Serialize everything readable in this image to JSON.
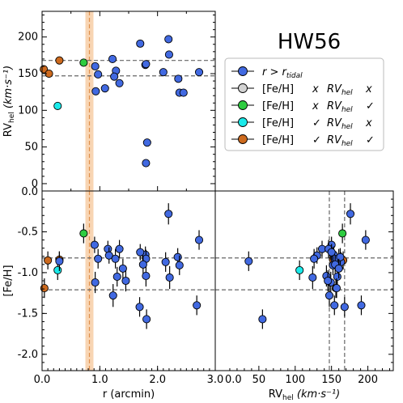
{
  "chart_data": {
    "type": "scatter",
    "title": "HW56",
    "colors": {
      "members": "#4169e1",
      "neither": "#d3d3d3",
      "rv_only": "#2ecc40",
      "feh_only": "#1aeaea",
      "both": "#cd6a1e",
      "tidal_band": "#f6c79a",
      "tidal_line": "#e0904c",
      "ref_line": "#666666"
    },
    "legend": {
      "placement": "right",
      "entries": [
        {
          "key": "members",
          "label": "r > r",
          "sub": "tidal",
          "c1": "",
          "c2": ""
        },
        {
          "key": "neither",
          "label": "[Fe/H]",
          "sub": "",
          "c1": "x",
          "c2": "x"
        },
        {
          "key": "rv_only",
          "label": "[Fe/H]",
          "sub": "",
          "c1": "x",
          "c2": "✓"
        },
        {
          "key": "feh_only",
          "label": "[Fe/H]",
          "sub": "",
          "c1": "✓",
          "c2": "x"
        },
        {
          "key": "both",
          "label": "[Fe/H]",
          "sub": "",
          "c1": "✓",
          "c2": "✓"
        }
      ],
      "rv_word": "RV",
      "rv_sub": "hel"
    },
    "axes": {
      "r_label": "r (arcmin)",
      "rv_label": "RV",
      "rv_sub": "hel",
      "rv_unit": "(km·s⁻¹)",
      "rv_unit_bottom": "(km·s⁻¹)",
      "feh_label": "[Fe/H]",
      "r_range": [
        0.0,
        3.0
      ],
      "rv_range": [
        -10,
        235
      ],
      "rv_range_bottom": [
        -10,
        235
      ],
      "feh_range": [
        -2.2,
        0.0
      ],
      "r_ticks": [
        "0.0",
        "1.0",
        "2.0",
        "3.0"
      ],
      "rv_ticks": [
        "0",
        "50",
        "100",
        "150",
        "200"
      ],
      "rv_ticks_bottom": [
        "50",
        "100",
        "150",
        "200"
      ],
      "feh_ticks": [
        "-0.5",
        "-1.0",
        "-1.5",
        "-2.0"
      ],
      "feh_top_tick": "0.0",
      "extra_tick": "0.0",
      "grid": false
    },
    "tidal_radius": {
      "r": 0.82,
      "band": [
        0.75,
        0.89
      ]
    },
    "rv_lines": [
      147,
      168
    ],
    "feh_lines": [
      -0.82,
      -1.21
    ],
    "rv_points": [
      {
        "r": 0.03,
        "rv": 156,
        "g": "both"
      },
      {
        "r": 0.12,
        "rv": 150,
        "g": "both"
      },
      {
        "r": 0.3,
        "rv": 168,
        "g": "both"
      },
      {
        "r": 0.27,
        "rv": 106,
        "g": "feh_only"
      },
      {
        "r": 0.72,
        "rv": 165,
        "g": "rv_only"
      },
      {
        "r": 0.92,
        "rv": 160,
        "g": "members"
      },
      {
        "r": 0.97,
        "rv": 149,
        "g": "members"
      },
      {
        "r": 0.93,
        "rv": 126,
        "g": "members"
      },
      {
        "r": 1.09,
        "rv": 130,
        "g": "members"
      },
      {
        "r": 1.22,
        "rv": 170,
        "g": "members"
      },
      {
        "r": 1.28,
        "rv": 154,
        "g": "members"
      },
      {
        "r": 1.25,
        "rv": 146,
        "g": "members"
      },
      {
        "r": 1.34,
        "rv": 137,
        "g": "members"
      },
      {
        "r": 1.7,
        "rv": 191,
        "g": "members"
      },
      {
        "r": 1.79,
        "rv": 162,
        "g": "members"
      },
      {
        "r": 1.8,
        "rv": 163,
        "g": "members"
      },
      {
        "r": 1.82,
        "rv": 56,
        "g": "members"
      },
      {
        "r": 1.8,
        "rv": 28,
        "g": "members"
      },
      {
        "r": 2.19,
        "rv": 197,
        "g": "members"
      },
      {
        "r": 2.2,
        "rv": 176,
        "g": "members"
      },
      {
        "r": 2.1,
        "rv": 152,
        "g": "members"
      },
      {
        "r": 2.36,
        "rv": 143,
        "g": "members"
      },
      {
        "r": 2.38,
        "rv": 124,
        "g": "members"
      },
      {
        "r": 2.45,
        "rv": 124,
        "g": "members"
      },
      {
        "r": 2.72,
        "rv": 152,
        "g": "members"
      }
    ],
    "feh_points": [
      {
        "r": 0.04,
        "rv": 156,
        "feh": -1.19,
        "err": 0.12,
        "g": "both"
      },
      {
        "r": 0.1,
        "rv": 166,
        "feh": -0.85,
        "err": 0.11,
        "g": "both"
      },
      {
        "r": 0.3,
        "rv": 152,
        "feh": -0.84,
        "err": 0.1,
        "g": "both"
      },
      {
        "r": 0.27,
        "rv": 106,
        "feh": -0.97,
        "err": 0.12,
        "g": "feh_only"
      },
      {
        "r": 0.72,
        "rv": 165,
        "feh": -0.52,
        "err": 0.12,
        "g": "rv_only"
      },
      {
        "r": 0.91,
        "rv": 150,
        "feh": -0.66,
        "err": 0.1,
        "g": "members"
      },
      {
        "r": 0.97,
        "rv": 160,
        "feh": -0.83,
        "err": 0.12,
        "g": "members"
      },
      {
        "r": 0.92,
        "rv": 149,
        "feh": -1.12,
        "err": 0.13,
        "g": "members"
      },
      {
        "r": 1.14,
        "rv": 137,
        "feh": -0.71,
        "err": 0.1,
        "g": "members"
      },
      {
        "r": 1.16,
        "rv": 130,
        "feh": -0.79,
        "err": 0.1,
        "g": "members"
      },
      {
        "r": 1.27,
        "rv": 126,
        "feh": -0.83,
        "err": 0.12,
        "g": "members"
      },
      {
        "r": 1.34,
        "rv": 146,
        "feh": -0.71,
        "err": 0.11,
        "g": "members"
      },
      {
        "r": 1.23,
        "rv": 147,
        "feh": -1.28,
        "err": 0.14,
        "g": "members"
      },
      {
        "r": 1.69,
        "rv": 168,
        "feh": -1.42,
        "err": 0.12,
        "g": "members"
      },
      {
        "r": 1.79,
        "rv": 153,
        "feh": -0.78,
        "err": 0.1,
        "g": "members"
      },
      {
        "r": 1.8,
        "rv": 154,
        "feh": -0.83,
        "err": 0.11,
        "g": "members"
      },
      {
        "r": 1.81,
        "rv": 55,
        "feh": -1.57,
        "err": 0.12,
        "g": "members"
      },
      {
        "r": 1.8,
        "rv": 143,
        "feh": -1.04,
        "err": 0.13,
        "g": "members"
      },
      {
        "r": 2.19,
        "rv": 176,
        "feh": -0.28,
        "err": 0.13,
        "g": "members"
      },
      {
        "r": 2.14,
        "rv": 163,
        "feh": -0.87,
        "err": 0.12,
        "g": "members"
      },
      {
        "r": 2.21,
        "rv": 124,
        "feh": -1.06,
        "err": 0.14,
        "g": "members"
      },
      {
        "r": 2.35,
        "rv": 162,
        "feh": -0.81,
        "err": 0.11,
        "g": "members"
      },
      {
        "r": 2.38,
        "rv": 152,
        "feh": -0.91,
        "err": 0.12,
        "g": "members"
      },
      {
        "r": 2.72,
        "rv": 197,
        "feh": -0.6,
        "err": 0.12,
        "g": "members"
      },
      {
        "r": 2.68,
        "rv": 191,
        "feh": -1.4,
        "err": 0.12,
        "g": "members"
      },
      {
        "r": 0.3,
        "rv": 36,
        "feh": -0.86,
        "err": 0.12,
        "g": "members"
      },
      {
        "r": 1.7,
        "rv": 150,
        "feh": -0.75,
        "err": 0.1,
        "g": "members"
      },
      {
        "r": 1.75,
        "rv": 155,
        "feh": -0.9,
        "err": 0.11,
        "g": "members"
      },
      {
        "r": 1.3,
        "rv": 158,
        "feh": -1.05,
        "err": 0.12,
        "g": "members"
      },
      {
        "r": 1.4,
        "rv": 160,
        "feh": -0.95,
        "err": 0.12,
        "g": "members"
      },
      {
        "r": 1.45,
        "rv": 145,
        "feh": -1.1,
        "err": 0.13,
        "g": "members"
      }
    ],
    "rv_feh_only_points": [
      {
        "rv": 157,
        "feh": -1.19,
        "err": 0.12,
        "g": "members"
      },
      {
        "rv": 154,
        "feh": -1.4,
        "err": 0.12,
        "g": "members"
      }
    ]
  }
}
